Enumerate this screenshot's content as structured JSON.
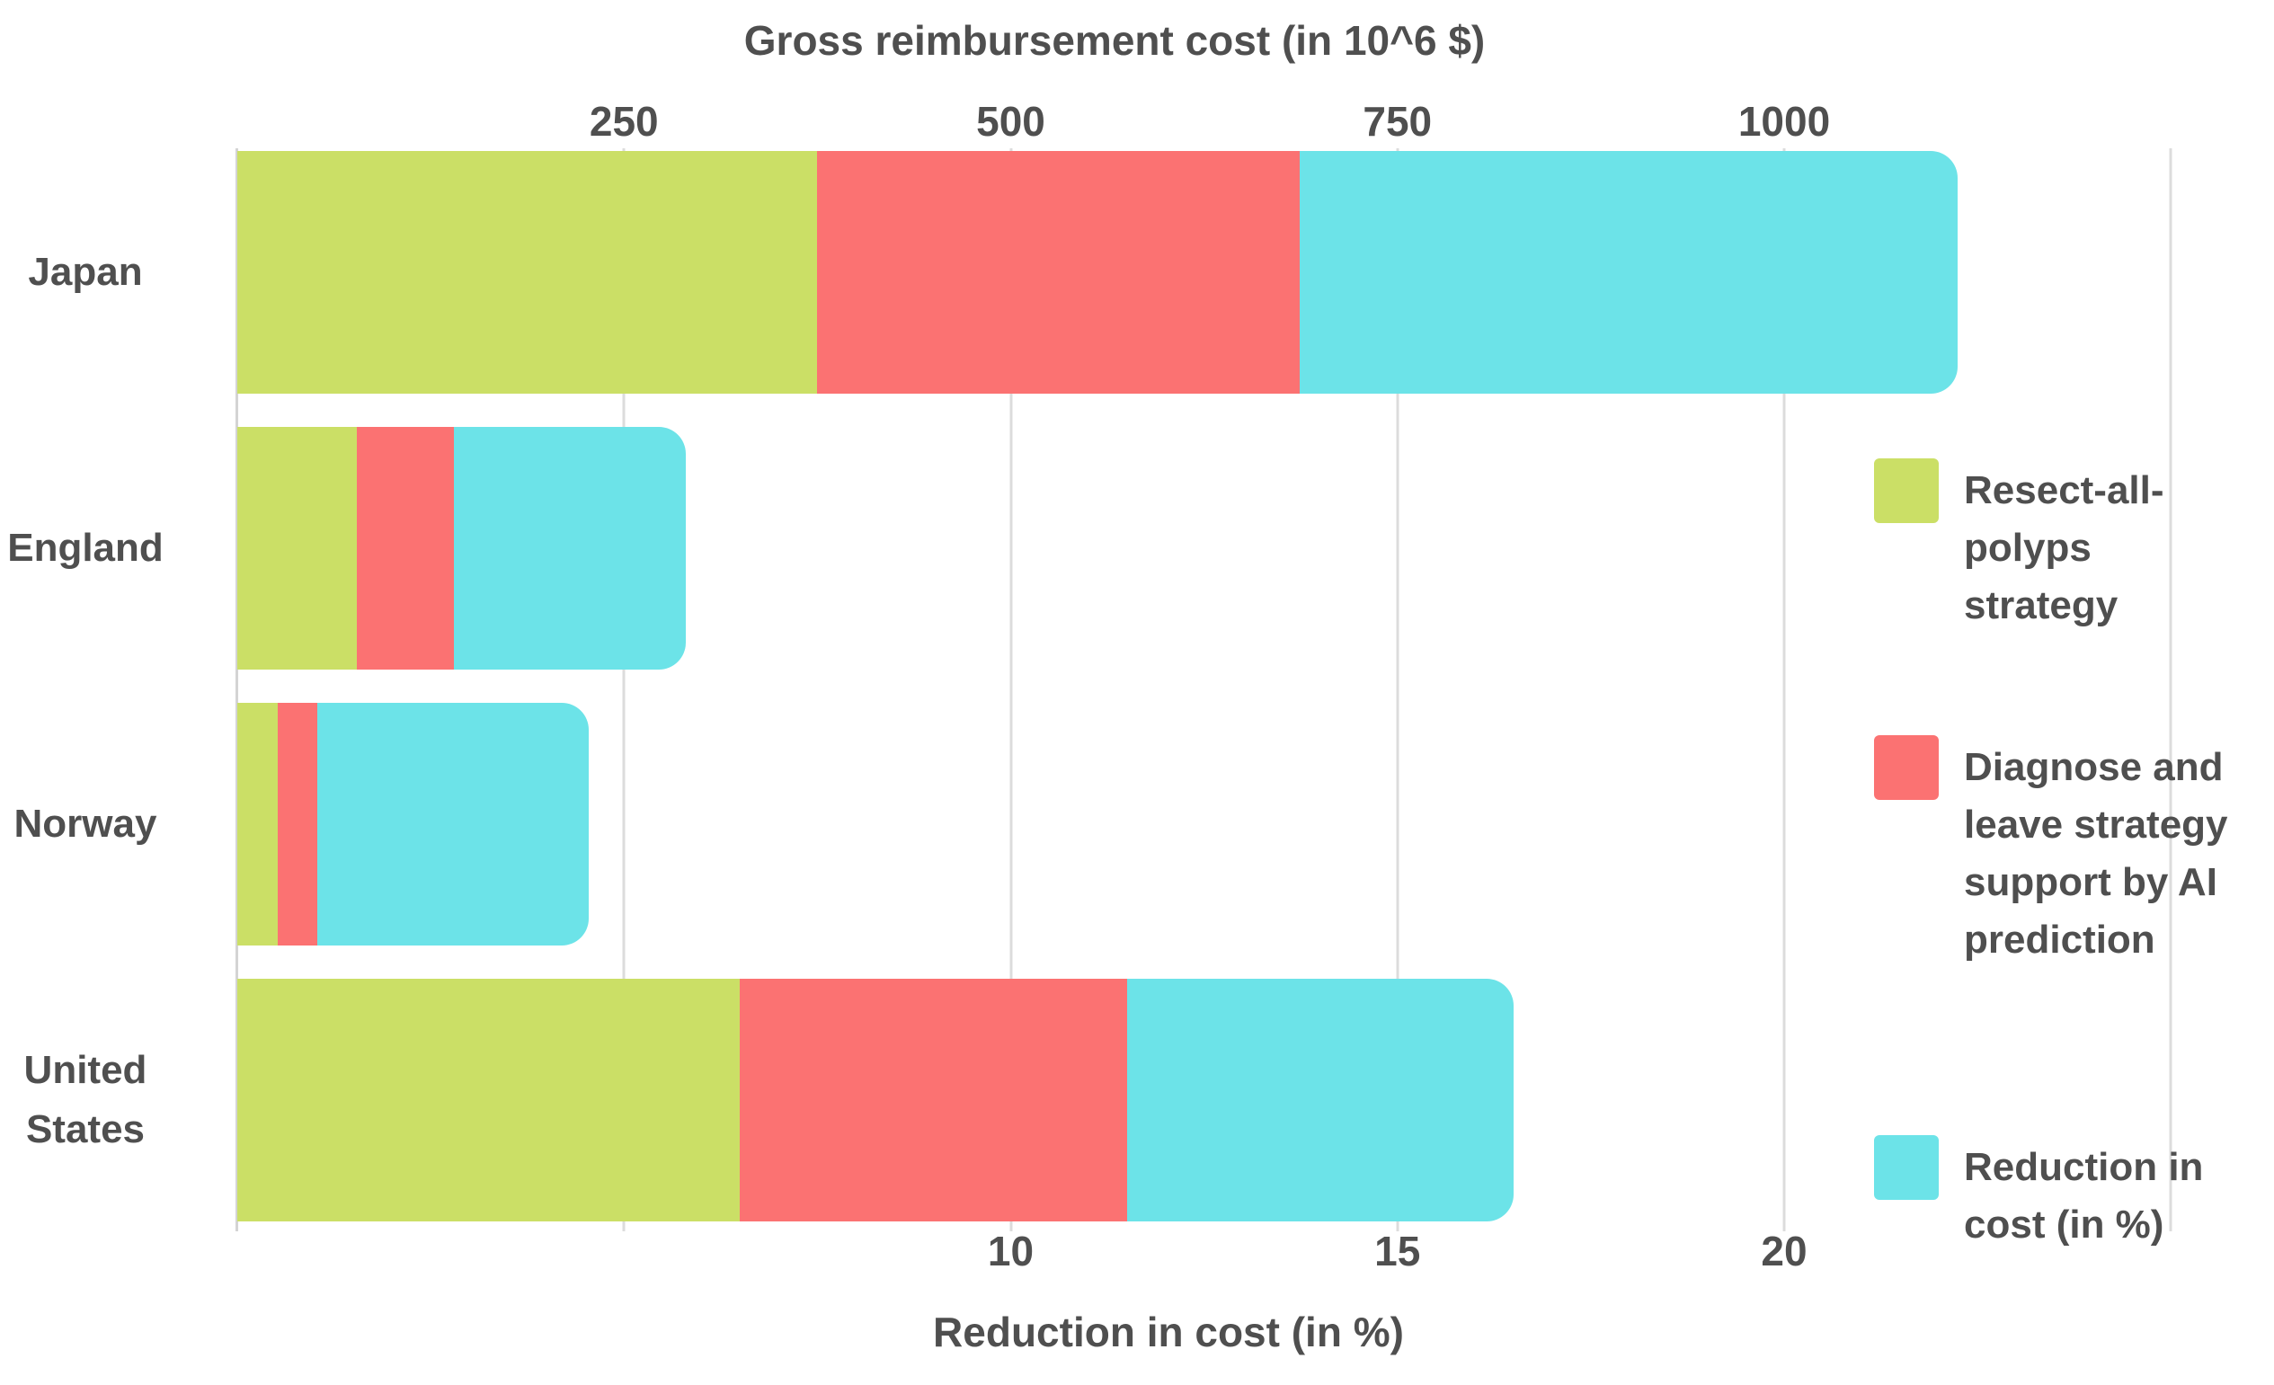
{
  "chart_data": {
    "type": "bar",
    "orientation": "horizontal",
    "stacked": true,
    "categories": [
      "Japan",
      "England",
      "Norway",
      "United States"
    ],
    "series": [
      {
        "name": "Resect-all-polyps strategy",
        "legend_label": "Resect-all-\npolyps\nstrategy",
        "color": "#cbdf66",
        "axis": "top",
        "unit": "10^6 $",
        "values": [
          375,
          77,
          26,
          325
        ]
      },
      {
        "name": "Diagnose and leave strategy support by AI prediction",
        "legend_label": "Diagnose and\nleave strategy\nsupport by AI\nprediction",
        "color": "#fb7272",
        "axis": "top",
        "unit": "10^6 $",
        "values": [
          312,
          63,
          26,
          250
        ]
      },
      {
        "name": "Reduction in cost (in %)",
        "legend_label": "Reduction in\ncost (in %)",
        "color": "#6ce3e8",
        "axis": "bottom",
        "unit": "%",
        "values": [
          8.5,
          3,
          3.5,
          5
        ]
      }
    ],
    "top_axis": {
      "title": "Gross reimbursement cost (in 10^6 $)",
      "ticks": [
        250,
        500,
        750,
        1000
      ],
      "gridlines": [
        250,
        500,
        750,
        1000,
        1250
      ],
      "max": 1276
    },
    "bottom_axis": {
      "title": "Reduction in cost (in %)",
      "ticks": [
        10,
        15,
        20
      ],
      "max": 25.5
    },
    "axis_scale_ratio": 50,
    "legend_position": "right",
    "grid": true,
    "text_color": "#4f4f4f",
    "gridline_color": "#dcdcdc",
    "background_color": "#ffffff"
  }
}
